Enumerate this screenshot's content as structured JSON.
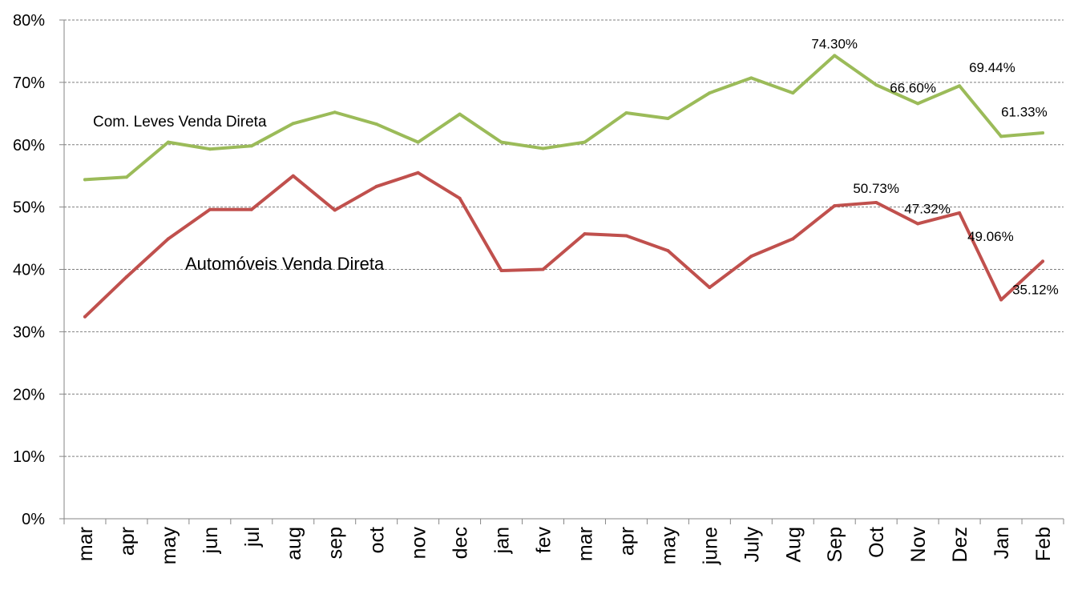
{
  "chart_data": {
    "type": "line",
    "categories": [
      "mar",
      "apr",
      "may",
      "jun",
      "jul",
      "aug",
      "sep",
      "oct",
      "nov",
      "dec",
      "jan",
      "fev",
      "mar",
      "apr",
      "may",
      "june",
      "July",
      "Aug",
      "Sep",
      "Oct",
      "Nov",
      "Dez",
      "Jan",
      "Feb"
    ],
    "ylim": [
      0,
      80
    ],
    "yticks": [
      "0%",
      "10%",
      "20%",
      "30%",
      "40%",
      "50%",
      "60%",
      "70%",
      "80%"
    ],
    "grid": true,
    "series": [
      {
        "name": "Com. Leves Venda Direta",
        "color": "#9bbb59",
        "values": [
          54.4,
          54.8,
          60.4,
          59.3,
          59.8,
          63.4,
          65.2,
          63.3,
          60.4,
          64.9,
          60.4,
          59.4,
          60.4,
          65.1,
          64.2,
          68.3,
          70.7,
          68.3,
          74.3,
          69.6,
          66.6,
          69.44,
          61.33,
          61.9
        ],
        "data_labels": [
          {
            "index": 18,
            "text": "74.30%"
          },
          {
            "index": 20,
            "text": "66.60%"
          },
          {
            "index": 21,
            "text": "69.44%"
          },
          {
            "index": 22,
            "text": "61.33%"
          }
        ]
      },
      {
        "name": "Automóveis Venda Direta",
        "color": "#c0504d",
        "values": [
          32.4,
          38.8,
          44.9,
          49.6,
          49.6,
          55.0,
          49.5,
          53.3,
          55.5,
          51.4,
          39.8,
          40.0,
          45.7,
          45.4,
          43.0,
          37.1,
          42.1,
          44.9,
          50.2,
          50.73,
          47.32,
          49.06,
          35.12,
          41.3
        ],
        "data_labels": [
          {
            "index": 19,
            "text": "50.73%"
          },
          {
            "index": 20,
            "text": "47.32%"
          },
          {
            "index": 21,
            "text": "49.06%"
          },
          {
            "index": 22,
            "text": "35.12%"
          }
        ]
      }
    ]
  }
}
